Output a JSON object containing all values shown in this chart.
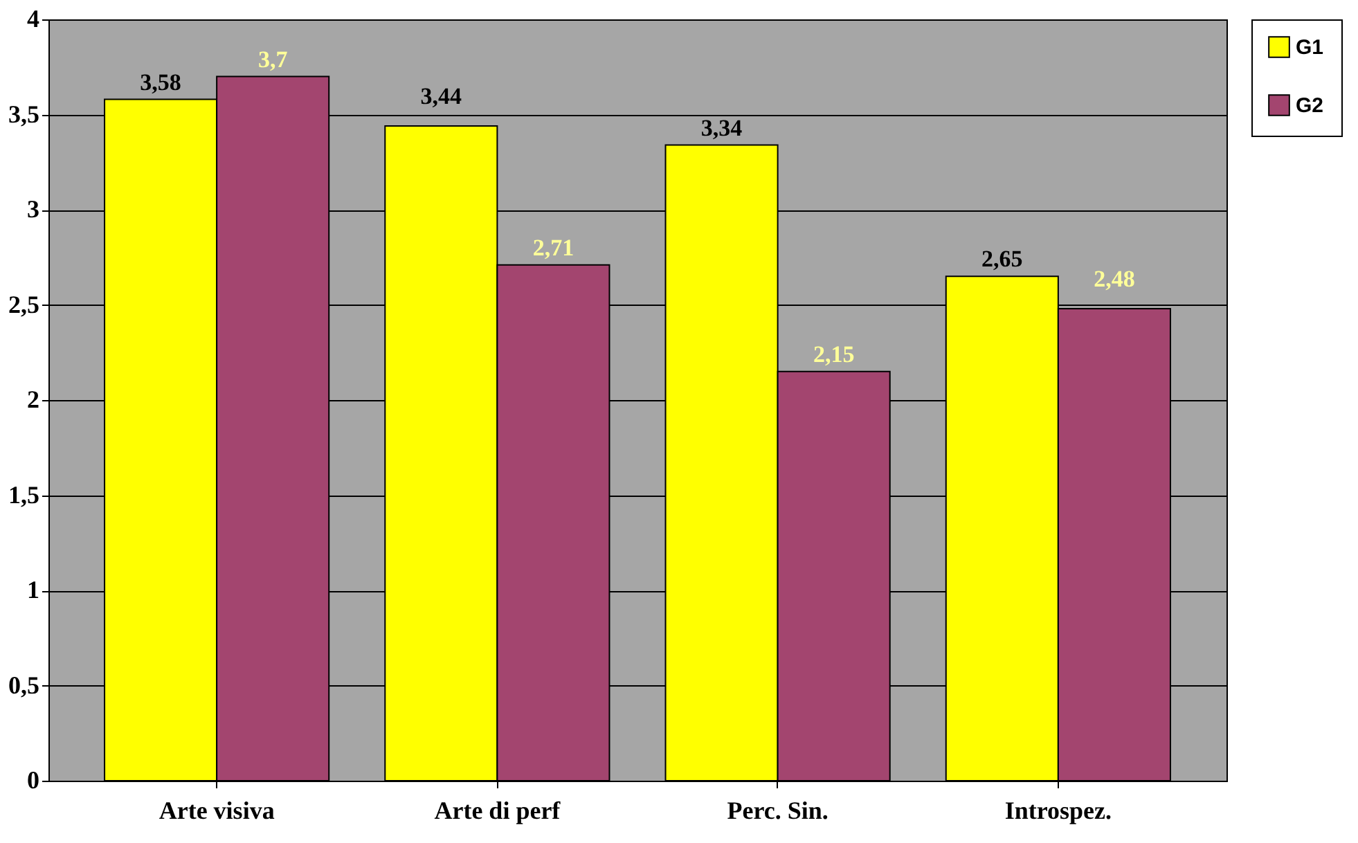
{
  "chart_data": {
    "type": "bar",
    "categories": [
      "Arte visiva",
      "Arte di perf",
      "Perc. Sin.",
      "Introspez."
    ],
    "series": [
      {
        "name": "G1",
        "color": "#ffff00",
        "values": [
          3.58,
          3.44,
          3.34,
          2.65
        ],
        "value_labels": [
          "3,58",
          "3,44",
          "3,34",
          "2,65"
        ]
      },
      {
        "name": "G2",
        "color": "#a3456f",
        "values": [
          3.7,
          2.71,
          2.15,
          2.48
        ],
        "value_labels": [
          "3,7",
          "2,71",
          "2,15",
          "2,48"
        ]
      }
    ],
    "ylim": [
      0,
      4
    ],
    "yticks": [
      0,
      {
        "value": 0.5,
        "label": "0,5"
      },
      1,
      {
        "value": 1.5,
        "label": "1,5"
      },
      2,
      {
        "value": 2.5,
        "label": "2,5"
      },
      3,
      {
        "value": 3.5,
        "label": "3,5"
      },
      4
    ],
    "grid": "y",
    "legend": "right"
  }
}
